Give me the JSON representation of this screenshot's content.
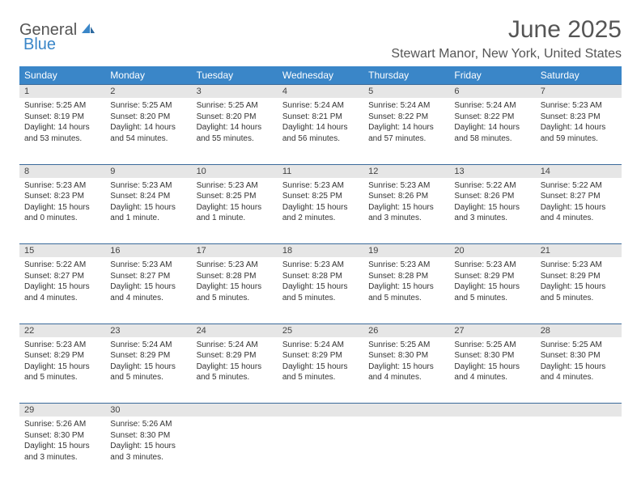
{
  "logo": {
    "text1": "General",
    "text2": "Blue"
  },
  "title": "June 2025",
  "location": "Stewart Manor, New York, United States",
  "colors": {
    "header_bg": "#3a86c8",
    "header_text": "#ffffff",
    "daynum_bg": "#e6e6e6",
    "border": "#3a6a9a",
    "logo_blue": "#3a86c8",
    "logo_gray": "#555555"
  },
  "dayNames": [
    "Sunday",
    "Monday",
    "Tuesday",
    "Wednesday",
    "Thursday",
    "Friday",
    "Saturday"
  ],
  "weeks": [
    {
      "nums": [
        "1",
        "2",
        "3",
        "4",
        "5",
        "6",
        "7"
      ],
      "cells": [
        {
          "sunrise": "Sunrise: 5:25 AM",
          "sunset": "Sunset: 8:19 PM",
          "day1": "Daylight: 14 hours",
          "day2": "and 53 minutes."
        },
        {
          "sunrise": "Sunrise: 5:25 AM",
          "sunset": "Sunset: 8:20 PM",
          "day1": "Daylight: 14 hours",
          "day2": "and 54 minutes."
        },
        {
          "sunrise": "Sunrise: 5:25 AM",
          "sunset": "Sunset: 8:20 PM",
          "day1": "Daylight: 14 hours",
          "day2": "and 55 minutes."
        },
        {
          "sunrise": "Sunrise: 5:24 AM",
          "sunset": "Sunset: 8:21 PM",
          "day1": "Daylight: 14 hours",
          "day2": "and 56 minutes."
        },
        {
          "sunrise": "Sunrise: 5:24 AM",
          "sunset": "Sunset: 8:22 PM",
          "day1": "Daylight: 14 hours",
          "day2": "and 57 minutes."
        },
        {
          "sunrise": "Sunrise: 5:24 AM",
          "sunset": "Sunset: 8:22 PM",
          "day1": "Daylight: 14 hours",
          "day2": "and 58 minutes."
        },
        {
          "sunrise": "Sunrise: 5:23 AM",
          "sunset": "Sunset: 8:23 PM",
          "day1": "Daylight: 14 hours",
          "day2": "and 59 minutes."
        }
      ]
    },
    {
      "nums": [
        "8",
        "9",
        "10",
        "11",
        "12",
        "13",
        "14"
      ],
      "cells": [
        {
          "sunrise": "Sunrise: 5:23 AM",
          "sunset": "Sunset: 8:23 PM",
          "day1": "Daylight: 15 hours",
          "day2": "and 0 minutes."
        },
        {
          "sunrise": "Sunrise: 5:23 AM",
          "sunset": "Sunset: 8:24 PM",
          "day1": "Daylight: 15 hours",
          "day2": "and 1 minute."
        },
        {
          "sunrise": "Sunrise: 5:23 AM",
          "sunset": "Sunset: 8:25 PM",
          "day1": "Daylight: 15 hours",
          "day2": "and 1 minute."
        },
        {
          "sunrise": "Sunrise: 5:23 AM",
          "sunset": "Sunset: 8:25 PM",
          "day1": "Daylight: 15 hours",
          "day2": "and 2 minutes."
        },
        {
          "sunrise": "Sunrise: 5:23 AM",
          "sunset": "Sunset: 8:26 PM",
          "day1": "Daylight: 15 hours",
          "day2": "and 3 minutes."
        },
        {
          "sunrise": "Sunrise: 5:22 AM",
          "sunset": "Sunset: 8:26 PM",
          "day1": "Daylight: 15 hours",
          "day2": "and 3 minutes."
        },
        {
          "sunrise": "Sunrise: 5:22 AM",
          "sunset": "Sunset: 8:27 PM",
          "day1": "Daylight: 15 hours",
          "day2": "and 4 minutes."
        }
      ]
    },
    {
      "nums": [
        "15",
        "16",
        "17",
        "18",
        "19",
        "20",
        "21"
      ],
      "cells": [
        {
          "sunrise": "Sunrise: 5:22 AM",
          "sunset": "Sunset: 8:27 PM",
          "day1": "Daylight: 15 hours",
          "day2": "and 4 minutes."
        },
        {
          "sunrise": "Sunrise: 5:23 AM",
          "sunset": "Sunset: 8:27 PM",
          "day1": "Daylight: 15 hours",
          "day2": "and 4 minutes."
        },
        {
          "sunrise": "Sunrise: 5:23 AM",
          "sunset": "Sunset: 8:28 PM",
          "day1": "Daylight: 15 hours",
          "day2": "and 5 minutes."
        },
        {
          "sunrise": "Sunrise: 5:23 AM",
          "sunset": "Sunset: 8:28 PM",
          "day1": "Daylight: 15 hours",
          "day2": "and 5 minutes."
        },
        {
          "sunrise": "Sunrise: 5:23 AM",
          "sunset": "Sunset: 8:28 PM",
          "day1": "Daylight: 15 hours",
          "day2": "and 5 minutes."
        },
        {
          "sunrise": "Sunrise: 5:23 AM",
          "sunset": "Sunset: 8:29 PM",
          "day1": "Daylight: 15 hours",
          "day2": "and 5 minutes."
        },
        {
          "sunrise": "Sunrise: 5:23 AM",
          "sunset": "Sunset: 8:29 PM",
          "day1": "Daylight: 15 hours",
          "day2": "and 5 minutes."
        }
      ]
    },
    {
      "nums": [
        "22",
        "23",
        "24",
        "25",
        "26",
        "27",
        "28"
      ],
      "cells": [
        {
          "sunrise": "Sunrise: 5:23 AM",
          "sunset": "Sunset: 8:29 PM",
          "day1": "Daylight: 15 hours",
          "day2": "and 5 minutes."
        },
        {
          "sunrise": "Sunrise: 5:24 AM",
          "sunset": "Sunset: 8:29 PM",
          "day1": "Daylight: 15 hours",
          "day2": "and 5 minutes."
        },
        {
          "sunrise": "Sunrise: 5:24 AM",
          "sunset": "Sunset: 8:29 PM",
          "day1": "Daylight: 15 hours",
          "day2": "and 5 minutes."
        },
        {
          "sunrise": "Sunrise: 5:24 AM",
          "sunset": "Sunset: 8:29 PM",
          "day1": "Daylight: 15 hours",
          "day2": "and 5 minutes."
        },
        {
          "sunrise": "Sunrise: 5:25 AM",
          "sunset": "Sunset: 8:30 PM",
          "day1": "Daylight: 15 hours",
          "day2": "and 4 minutes."
        },
        {
          "sunrise": "Sunrise: 5:25 AM",
          "sunset": "Sunset: 8:30 PM",
          "day1": "Daylight: 15 hours",
          "day2": "and 4 minutes."
        },
        {
          "sunrise": "Sunrise: 5:25 AM",
          "sunset": "Sunset: 8:30 PM",
          "day1": "Daylight: 15 hours",
          "day2": "and 4 minutes."
        }
      ]
    },
    {
      "nums": [
        "29",
        "30",
        "",
        "",
        "",
        "",
        ""
      ],
      "cells": [
        {
          "sunrise": "Sunrise: 5:26 AM",
          "sunset": "Sunset: 8:30 PM",
          "day1": "Daylight: 15 hours",
          "day2": "and 3 minutes."
        },
        {
          "sunrise": "Sunrise: 5:26 AM",
          "sunset": "Sunset: 8:30 PM",
          "day1": "Daylight: 15 hours",
          "day2": "and 3 minutes."
        },
        null,
        null,
        null,
        null,
        null
      ]
    }
  ]
}
